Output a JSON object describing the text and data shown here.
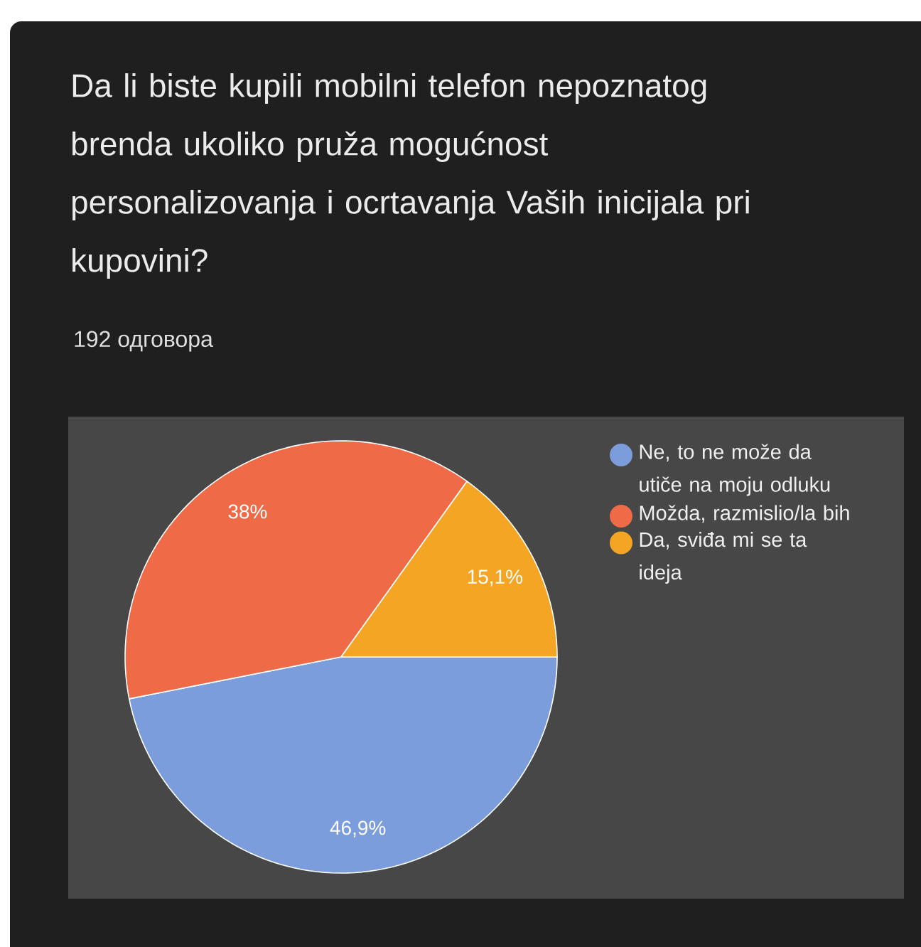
{
  "chart_data": {
    "type": "pie",
    "title": "Da li biste kupili mobilni telefon nepoznatog brenda ukoliko pruža mogućnost personalizovanja i ocrtavanja Vaših inicijala pri kupovini?",
    "subtitle": "192 одговора",
    "categories": [
      "Ne, to ne može da utiče na moju odluku",
      "Možda, razmislio/la bih",
      "Da, sviđa mi se ta ideja"
    ],
    "values": [
      46.9,
      38,
      15.1
    ],
    "colors": [
      "#7c9ddb",
      "#ef6a47",
      "#f5a524"
    ],
    "value_labels": [
      "46,9%",
      "38%",
      "15,1%"
    ],
    "legend": "right"
  }
}
